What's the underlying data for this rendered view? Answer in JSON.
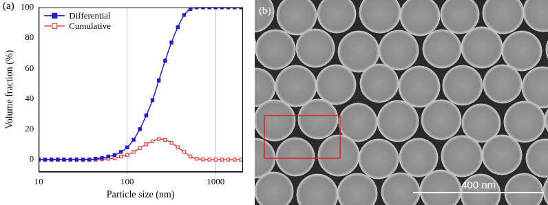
{
  "chart_data": {
    "type": "line",
    "annotations": [
      "(a)"
    ],
    "x_label": "Particle size (nm)",
    "y_label": "Volume fraction (%)",
    "log": "x",
    "grid": true,
    "legend": "upper left",
    "xlim": [
      10,
      2000
    ],
    "xticks": [
      10,
      100,
      1000
    ],
    "ylim": [
      -8,
      100
    ],
    "yticks": [
      0,
      20,
      40,
      60,
      80,
      100
    ],
    "x": [
      10,
      11.8,
      13.9,
      16.4,
      19.3,
      22.8,
      26.8,
      31.6,
      37.3,
      43.9,
      51.8,
      61.1,
      72.0,
      84.8,
      100,
      117.9,
      138.9,
      163.8,
      193.1,
      227.6,
      268.3,
      316.2,
      372.8,
      439.4,
      517.9,
      610.5,
      719.7,
      848.3,
      1000,
      1178.8,
      1389.5,
      1637.9,
      1930.7
    ],
    "series": [
      {
        "name": "Differential",
        "color": "#1f1fd0",
        "marker": "square",
        "line_style": "solid",
        "values": [
          0,
          0,
          0,
          0,
          0,
          0,
          0,
          0,
          0,
          0.5,
          1,
          2,
          3,
          5,
          8,
          13,
          20,
          29,
          39,
          52,
          65,
          77,
          87,
          95,
          99,
          100,
          100,
          100,
          100,
          100,
          100,
          100,
          100
        ]
      },
      {
        "name": "Cumulative",
        "color": "#e8403a",
        "marker": "open_square",
        "line_style": "solid",
        "values": [
          0,
          0,
          0,
          0,
          0,
          0,
          0,
          0,
          0,
          0,
          0.2,
          0.5,
          1,
          2,
          3,
          5,
          7.5,
          10,
          12,
          13.5,
          13,
          11,
          8,
          5,
          2,
          0.5,
          0.1,
          0,
          0,
          0,
          0,
          0,
          0
        ]
      }
    ]
  },
  "image": {
    "label": "(b)",
    "scale_bar": "400 nm"
  }
}
